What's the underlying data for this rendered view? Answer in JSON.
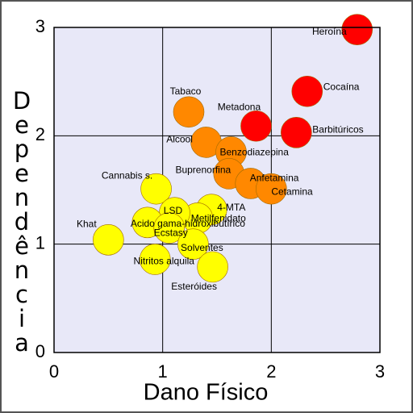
{
  "chart_data": {
    "type": "scatter",
    "xlabel": "Dano Físico",
    "ylabel": "Dependência",
    "xlim": [
      0,
      3
    ],
    "ylim": [
      0,
      3
    ],
    "xticks": [
      0,
      1,
      2,
      3
    ],
    "yticks": [
      0,
      1,
      2,
      3
    ],
    "grid": true,
    "labels": [
      "Heroína",
      "Cocaína",
      "Barbitúricos",
      "Metadona",
      "Tabaco",
      "Alcool",
      "Benzodiazepina",
      "Buprenorfina",
      "Anfetamina",
      "Cetamina",
      "Cannabis s.",
      "4-MTA",
      "Metilfenidato",
      "LSD",
      "Acido gama-hidroxibutírico",
      "Ecstasy",
      "Khat",
      "Solventes",
      "Nitritos alquila",
      "Esteróides"
    ],
    "x": [
      2.79,
      2.33,
      2.23,
      1.86,
      1.24,
      1.4,
      1.63,
      1.61,
      1.81,
      2.0,
      0.94,
      1.45,
      1.32,
      1.11,
      0.86,
      1.06,
      0.5,
      1.28,
      0.93,
      1.46
    ],
    "y": [
      2.98,
      2.41,
      2.03,
      2.09,
      2.22,
      1.94,
      1.85,
      1.65,
      1.56,
      1.51,
      1.51,
      1.32,
      1.24,
      1.29,
      1.2,
      1.15,
      1.04,
      1.0,
      0.86,
      0.79
    ],
    "colors": [
      "#ff0000",
      "#ff0000",
      "#ff0000",
      "#ff0000",
      "#ff8800",
      "#ff8800",
      "#ff8800",
      "#ff8800",
      "#ff8800",
      "#ff8800",
      "#ffff00",
      "#ffff00",
      "#ffff00",
      "#ffff00",
      "#ffff00",
      "#ffff00",
      "#ffff00",
      "#ffff00",
      "#ffff00",
      "#ffff00"
    ]
  }
}
